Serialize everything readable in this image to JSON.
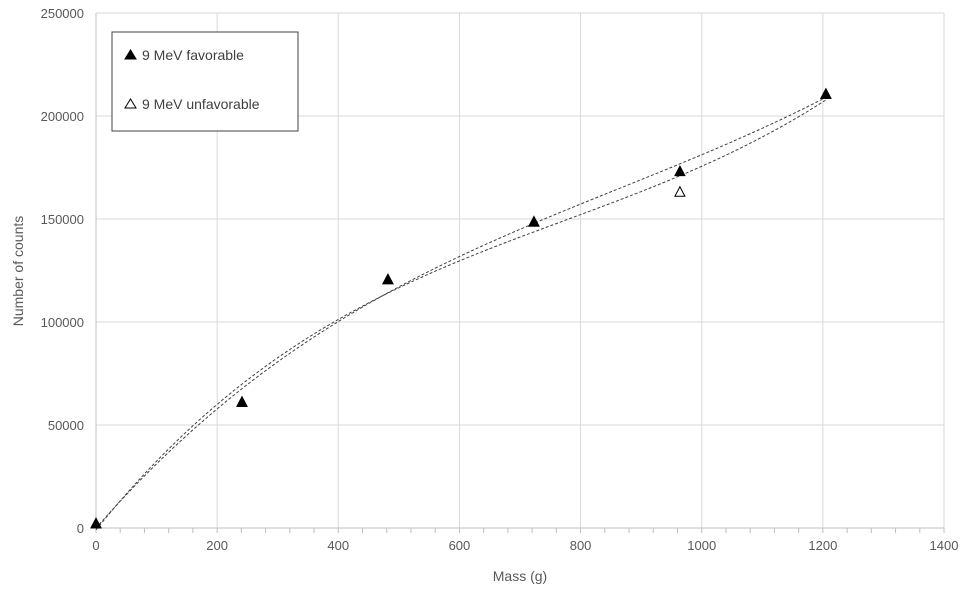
{
  "chart_data": {
    "type": "scatter",
    "xlabel": "Mass (g)",
    "ylabel": "Number of counts",
    "xlim": [
      0,
      1400
    ],
    "ylim": [
      0,
      250000
    ],
    "x_ticks": [
      0,
      200,
      400,
      600,
      800,
      1000,
      1200,
      1400
    ],
    "y_ticks": [
      0,
      50000,
      100000,
      150000,
      200000,
      250000
    ],
    "x_minor_step": 40,
    "grid": true,
    "legend_position": "top-left",
    "series": [
      {
        "name": "9 MeV favorable",
        "marker": "filled-triangle",
        "color": "#000000",
        "trendline": "polynomial-dashed",
        "x": [
          0,
          241,
          482,
          723,
          964,
          1205
        ],
        "y": [
          2000,
          61000,
          120500,
          148500,
          173000,
          210500
        ]
      },
      {
        "name": "9 MeV unfavorable",
        "marker": "open-triangle",
        "color": "#000000",
        "trendline": "polynomial-dashed",
        "x": [
          0,
          241,
          482,
          723,
          964,
          1205
        ],
        "y": [
          2000,
          61000,
          120500,
          148500,
          163000,
          210500
        ]
      }
    ]
  }
}
